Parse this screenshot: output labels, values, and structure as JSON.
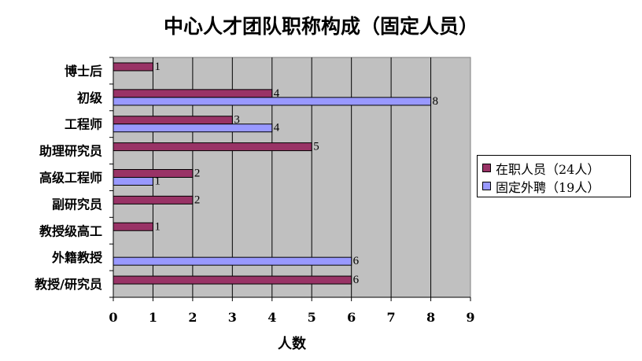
{
  "chart_data": {
    "type": "bar",
    "orientation": "horizontal",
    "title": "中心人才团队职称构成（固定人员）",
    "xlabel": "人数",
    "ylabel": "",
    "xlim": [
      0,
      9
    ],
    "xticks": [
      "0",
      "1",
      "2",
      "3",
      "4",
      "5",
      "6",
      "7",
      "8",
      "9"
    ],
    "grid": true,
    "legend_position": "right",
    "categories": [
      "博士后",
      "初级",
      "工程师",
      "助理研究员",
      "高级工程师",
      "副研究员",
      "教授级高工",
      "外籍教授",
      "教授/研究员"
    ],
    "series": [
      {
        "name": "在职人员（24人）",
        "color": "#993366",
        "values": [
          1,
          4,
          3,
          5,
          2,
          2,
          1,
          null,
          6
        ]
      },
      {
        "name": "固定外聘（19人）",
        "color": "#9999ff",
        "values": [
          null,
          8,
          4,
          null,
          1,
          null,
          null,
          6,
          null
        ]
      }
    ],
    "plot_background": "#c0c0c0"
  }
}
